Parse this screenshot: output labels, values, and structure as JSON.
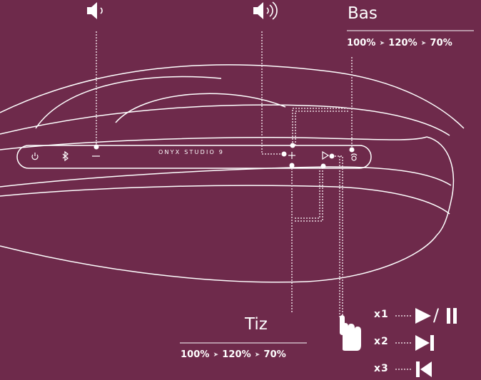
{
  "colors": {
    "background": "#6e2a4b",
    "line": "#ffffff",
    "dotted_line": "#e9d7e0"
  },
  "icons": {
    "volume_down": "speaker-low-icon",
    "volume_up": "speaker-high-icon",
    "hand": "hand-pointer-icon",
    "play_pause": "play-pause-icon",
    "next": "skip-next-icon",
    "previous": "skip-previous-icon",
    "power": "power-icon",
    "bluetooth": "bluetooth-icon"
  },
  "speaker": {
    "brand": "ONYX STUDIO 9",
    "minus_symbol": "−",
    "plus_symbol": "+"
  },
  "bass": {
    "title": "Bas",
    "levels": [
      "100%",
      "120%",
      "70%"
    ],
    "arrow": "➤"
  },
  "treble": {
    "title": "Tiz",
    "levels": [
      "100%",
      "120%",
      "70%"
    ],
    "arrow": "➤"
  },
  "playback": {
    "x1": "x1",
    "x2": "x2",
    "x3": "x3",
    "slash": "/"
  }
}
